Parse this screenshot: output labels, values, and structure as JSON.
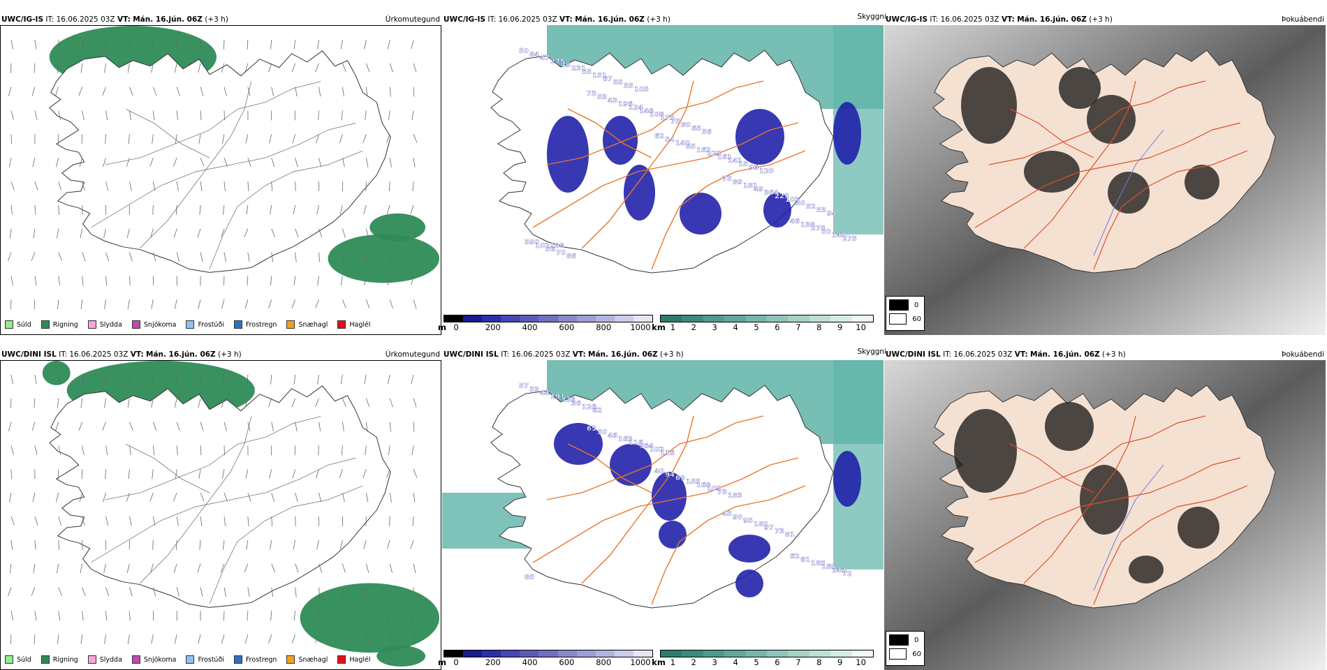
{
  "colors": {
    "precip_green": "#2e8b57",
    "drizzle_green": "#90ee90",
    "terrain_blue": "#1c1ca8",
    "terrain_teal": "#5fb3a8",
    "road_orange": "#e8762a",
    "land_beige": "#f5e1d2"
  },
  "rows": [
    {
      "model": "UWC/IG-IS",
      "precip": {
        "it_label": "IT:",
        "it": "16.06.2025 03Z",
        "vt_label": "VT:",
        "vt": "Mán. 16.jún. 06Z",
        "lead": "(+3 h)",
        "title": "Úrkomutegund"
      },
      "ceiling": {
        "it_label": "IT:",
        "it": "16.06.2025 03Z",
        "vt_label": "VT:",
        "vt": "Mán. 16.jún. 06Z",
        "lead": "(+3 h)",
        "title": "Skyggni",
        "labels": [
          "50",
          "73",
          "62",
          "75",
          "46",
          "84",
          "53",
          "54",
          "89",
          "138",
          "47",
          "43",
          "140",
          "181",
          "275",
          "275",
          "196",
          "85",
          "49",
          "50",
          "49",
          "124",
          "162",
          "364",
          "140",
          "231",
          "148",
          "223",
          "225",
          "275",
          "55",
          "108",
          "161",
          "103",
          "390",
          "151",
          "175",
          "141",
          "30",
          "102108",
          "67",
          "75",
          "15",
          "52",
          "56",
          "55",
          "80",
          "96",
          "53",
          "70",
          "55",
          "65",
          "120",
          "94",
          "86",
          "105",
          "56"
        ]
      },
      "cloud": {
        "it_label": "IT:",
        "it": "16.06.2025 03Z",
        "vt_label": "VT:",
        "vt": "Mán. 16.jún. 06Z",
        "lead": "(+3 h)",
        "title": "Þokuábendi"
      }
    },
    {
      "model": "UWC/DINI ISL",
      "precip": {
        "it_label": "IT:",
        "it": "16.06.2025 03Z",
        "vt_label": "VT:",
        "vt": "Mán. 16.jún. 06Z",
        "lead": "(+3 h)",
        "title": "Úrkomutegund"
      },
      "ceiling": {
        "it_label": "IT:",
        "it": "16.06.2025 03Z",
        "vt_label": "VT:",
        "vt": "Mán. 16.jún. 06Z",
        "lead": "(+3 h)",
        "title": "Skyggni",
        "labels": [
          "57",
          "65",
          "40",
          "45",
          "62",
          "53",
          "50",
          "94",
          "90",
          "61",
          "44",
          "46",
          "69",
          "95",
          "185",
          "191",
          "163",
          "155",
          "182",
          "165",
          "336",
          "116",
          "168",
          "97",
          "243",
          "36",
          "964",
          "109",
          "73",
          "72",
          "126",
          "102",
          "73",
          "81",
          "85",
          "62",
          "116",
          "183"
        ]
      },
      "cloud": {
        "it_label": "IT:",
        "it": "16.06.2025 03Z",
        "vt_label": "VT:",
        "vt": "Mán. 16.jún. 06Z",
        "lead": "(+3 h)",
        "title": "Þokuábendi"
      }
    }
  ],
  "precip_legend": [
    {
      "label": "Súld",
      "color": "#90ee90"
    },
    {
      "label": "Rigning",
      "color": "#2e8b57"
    },
    {
      "label": "Slydda",
      "color": "#f4a6d7"
    },
    {
      "label": "Snjókoma",
      "color": "#c04bb0"
    },
    {
      "label": "Frostúði",
      "color": "#8fc1f2"
    },
    {
      "label": "Frostregn",
      "color": "#2f6fc4"
    },
    {
      "label": "Snæhagl",
      "color": "#f0a020"
    },
    {
      "label": "Haglél",
      "color": "#e0101a"
    }
  ],
  "height_scale": {
    "unit": "m",
    "ticks": [
      "0",
      "200",
      "400",
      "600",
      "800",
      "1000"
    ],
    "colors": [
      "#000000",
      "#1c1c8c",
      "#2e2ea8",
      "#4646b4",
      "#5a5ab8",
      "#7070c0",
      "#8888cc",
      "#9e9ed6",
      "#b4b4e0",
      "#ccccec",
      "#e6e6f6"
    ]
  },
  "km_scale": {
    "unit": "km",
    "ticks": [
      "1",
      "2",
      "3",
      "4",
      "5",
      "6",
      "7",
      "8",
      "9",
      "10"
    ],
    "colors": [
      "#2e7a70",
      "#3b8a80",
      "#4e9a90",
      "#62a89e",
      "#78b6ac",
      "#8ec4ba",
      "#a6d2c8",
      "#bedfd8",
      "#d6ece6",
      "#eef7f4"
    ]
  },
  "cloud_legend": [
    {
      "value": "0",
      "color": "#000000"
    },
    {
      "value": "60",
      "color": "#ffffff"
    }
  ]
}
